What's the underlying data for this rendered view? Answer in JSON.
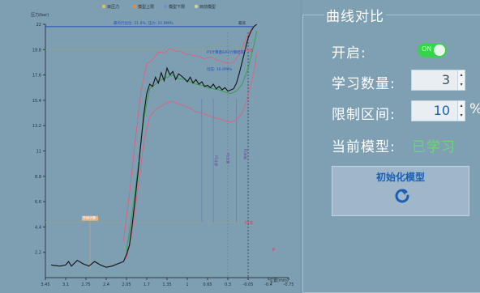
{
  "panel": {
    "title": "曲线对比",
    "enable_label": "开启:",
    "toggle_state": "on",
    "toggle_text": "ON",
    "learn_count_label": "学习数量:",
    "learn_count_value": "3",
    "limit_range_label": "限制区间:",
    "limit_range_value": "10",
    "limit_range_unit": "%",
    "current_model_label": "当前模型:",
    "current_model_value": "已学习",
    "init_button_label": "初始化模型",
    "init_button_icon": "refresh-icon"
  },
  "colors": {
    "actual": "#111111",
    "upper": "#e85a7a",
    "lower": "#e85a7a",
    "model": "#2f9e44",
    "accent_green": "#36d44a",
    "learned_text": "#6bd67a"
  },
  "chart_data": {
    "type": "line",
    "legend": [
      "目压力",
      "模型上限",
      "模型下限",
      "目前模型"
    ],
    "legend_placement": "top",
    "ylabel": "压力(bar)",
    "xlabel": "位置(mm)",
    "y_ticks": [
      "2.2",
      "4.4",
      "6.6",
      "8.8",
      "11",
      "13.2",
      "15.4",
      "17.6",
      "19.8",
      "22"
    ],
    "x_ticks": [
      "3.45",
      "3.1",
      "2.75",
      "2.4",
      "2.05",
      "1.7",
      "1.35",
      "1",
      "0.65",
      "0.3",
      "-0.05",
      "-0.4",
      "-0.75"
    ],
    "xlim": [
      3.45,
      -0.75
    ],
    "ylim": [
      0,
      22
    ],
    "grid": false,
    "annotations": {
      "top_line_label": "最的行比位: 21.8%, 压力: 21.8MPa",
      "top_line_right": "最高",
      "mid_label": "均压: 16.6MPa",
      "mid_label2": "P1计算量&P2计算结束",
      "upper_tag": "P1左",
      "lower_tag": "P1左",
      "vertical_tag1": "P1计算",
      "vertical_tag2": "P1计算",
      "vertical_tag3": "P1末端",
      "low_tag": "开始计算",
      "marker_tag": "P"
    },
    "series": [
      {
        "name": "目压力",
        "x": [
          3.35,
          3.2,
          3.1,
          3.05,
          3.0,
          2.9,
          2.8,
          2.7,
          2.6,
          2.5,
          2.4,
          2.3,
          2.2,
          2.1,
          2.05,
          2.0,
          1.95,
          1.9,
          1.85,
          1.8,
          1.75,
          1.7,
          1.65,
          1.6,
          1.55,
          1.5,
          1.45,
          1.4,
          1.35,
          1.3,
          1.25,
          1.2,
          1.15,
          1.1,
          1.05,
          1.0,
          0.95,
          0.9,
          0.85,
          0.8,
          0.75,
          0.7,
          0.65,
          0.6,
          0.55,
          0.5,
          0.45,
          0.4,
          0.35,
          0.3,
          0.25,
          0.2,
          0.15,
          0.1,
          0.05,
          0.0,
          -0.05,
          -0.1,
          -0.15,
          -0.2
        ],
        "values": [
          1.1,
          1.0,
          1.1,
          1.4,
          1.0,
          1.5,
          1.2,
          1.0,
          1.4,
          1.1,
          0.9,
          1.0,
          1.2,
          1.4,
          2.0,
          2.8,
          4.6,
          6.8,
          9.2,
          11.8,
          14.2,
          16.0,
          16.8,
          16.6,
          17.4,
          16.9,
          17.8,
          17.1,
          18.2,
          17.6,
          17.9,
          17.2,
          17.7,
          17.5,
          17.3,
          17.0,
          17.4,
          16.9,
          17.2,
          16.8,
          17.0,
          16.6,
          16.7,
          16.5,
          16.8,
          16.4,
          16.6,
          16.3,
          16.5,
          16.2,
          16.3,
          16.4,
          16.9,
          17.8,
          18.8,
          19.8,
          20.8,
          21.4,
          21.8,
          22.0
        ]
      },
      {
        "name": "模型上限",
        "x": [
          2.1,
          2.0,
          1.9,
          1.8,
          1.7,
          1.6,
          1.5,
          1.4,
          1.3,
          1.2,
          1.1,
          1.0,
          0.9,
          0.8,
          0.7,
          0.6,
          0.5,
          0.4,
          0.3,
          0.2,
          0.1,
          0.0,
          -0.1,
          -0.2
        ],
        "values": [
          3.2,
          7.2,
          11.8,
          16.2,
          18.6,
          18.9,
          19.6,
          19.5,
          19.9,
          19.7,
          19.6,
          19.4,
          19.3,
          19.2,
          19.0,
          19.2,
          18.9,
          18.8,
          18.6,
          18.7,
          19.4,
          20.6,
          21.6,
          22.0
        ]
      },
      {
        "name": "模型下限",
        "x": [
          2.05,
          1.95,
          1.85,
          1.75,
          1.65,
          1.55,
          1.45,
          1.35,
          1.25,
          1.15,
          1.05,
          0.95,
          0.85,
          0.75,
          0.65,
          0.55,
          0.45,
          0.35,
          0.25,
          0.15,
          0.05,
          -0.05,
          -0.15,
          -0.2
        ],
        "values": [
          1.6,
          4.0,
          7.8,
          11.8,
          14.0,
          14.6,
          14.9,
          15.2,
          15.3,
          15.1,
          14.9,
          14.7,
          14.4,
          14.3,
          14.1,
          13.9,
          13.8,
          13.6,
          13.5,
          13.7,
          14.3,
          15.8,
          17.8,
          19.5
        ]
      },
      {
        "name": "目前模型",
        "x": [
          2.05,
          1.95,
          1.85,
          1.75,
          1.65,
          1.55,
          1.45,
          1.35,
          1.25,
          1.15,
          1.05,
          0.95,
          0.85,
          0.75,
          0.65,
          0.55,
          0.45,
          0.35,
          0.25,
          0.15,
          0.05,
          -0.05,
          -0.15,
          -0.2
        ],
        "values": [
          2.3,
          5.6,
          9.6,
          13.8,
          16.4,
          16.8,
          17.2,
          17.4,
          17.6,
          17.3,
          17.2,
          17.0,
          16.8,
          16.7,
          16.5,
          16.4,
          16.3,
          16.1,
          16.0,
          16.2,
          16.8,
          18.2,
          20.2,
          21.4
        ]
      }
    ]
  }
}
